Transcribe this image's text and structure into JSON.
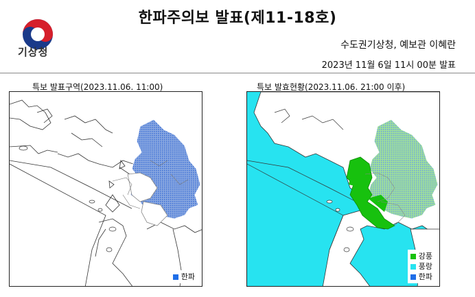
{
  "header": {
    "title": "한파주의보 발표(제11-18호)",
    "issuer": "수도권기상청, 예보관 이혜란",
    "datetime": "2023년 11월 6일 11시 00분 발표"
  },
  "logo": {
    "text": "기상청",
    "icon": "kma-taegeuk-icon"
  },
  "maps": [
    {
      "label": "특보 발표구역(2023.11.06. 11:00)",
      "legend": [
        {
          "label": "한파",
          "color": "#1e6ee8"
        }
      ]
    },
    {
      "label": "특보 발효현황(2023.11.06. 21:00 이후)",
      "legend": [
        {
          "label": "강풍",
          "color": "#17c10e"
        },
        {
          "label": "풍랑",
          "color": "#27e3f0"
        },
        {
          "label": "한파",
          "color": "#1e6ee8"
        }
      ]
    }
  ],
  "colors": {
    "cold_wave": "#1e6ee8",
    "strong_wind": "#17c10e",
    "wind_wave": "#27e3f0"
  }
}
